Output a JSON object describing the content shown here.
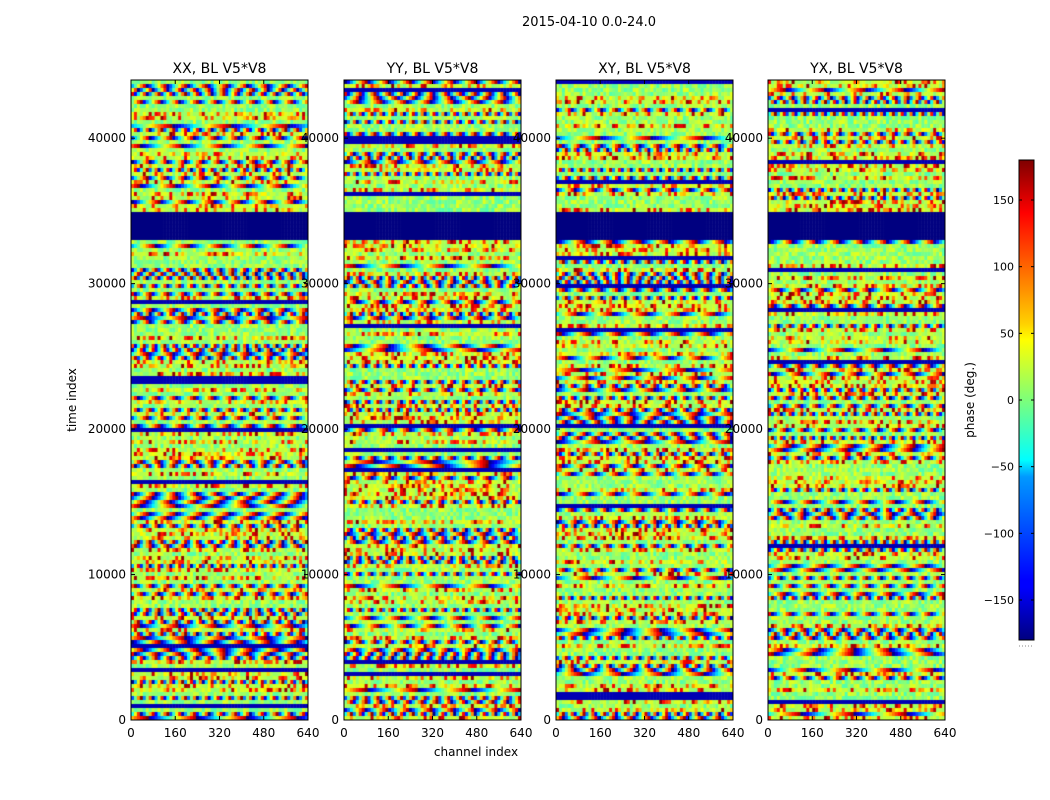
{
  "figure": {
    "suptitle": "2015-04-10 0.0-24.0"
  },
  "chart_data": {
    "type": "heatmap",
    "xlabel": "channel index",
    "ylabel": "time index",
    "xlim": [
      0,
      640
    ],
    "ylim": [
      0,
      44000
    ],
    "xticks": [
      0,
      160,
      320,
      480,
      640
    ],
    "yticks": [
      0,
      10000,
      20000,
      30000,
      40000
    ],
    "ytick_labels": [
      "0",
      "10000",
      "20000",
      "30000",
      "40000"
    ],
    "flagged_time_ranges": [
      [
        33000,
        34800
      ]
    ],
    "panels": [
      {
        "title": "XX, BL V5*V8"
      },
      {
        "title": "YY, BL V5*V8"
      },
      {
        "title": "XY, BL V5*V8"
      },
      {
        "title": "YX, BL V5*V8"
      }
    ],
    "colorbar": {
      "label": "phase (deg.)",
      "range": [
        -180,
        180
      ],
      "ticks": [
        150,
        100,
        50,
        0,
        -50,
        -100,
        -150
      ],
      "tick_labels": [
        "150",
        "100",
        "50",
        "0",
        "−50",
        "−100",
        "−150"
      ],
      "colormap": "jet"
    }
  }
}
